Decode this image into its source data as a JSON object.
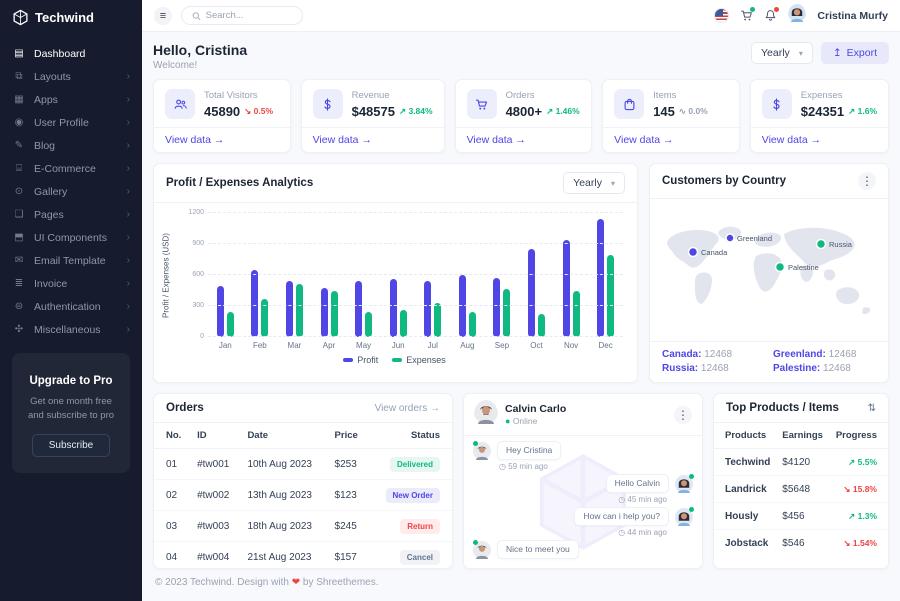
{
  "app": {
    "name": "Techwind"
  },
  "colors": {
    "accent": "#4f46e5",
    "green": "#10b981",
    "red": "#ef4444",
    "sidebar_bg": "#161c2d"
  },
  "sidebar": {
    "items": [
      {
        "label": "Dashboard",
        "icon": "▤",
        "active": true
      },
      {
        "label": "Layouts",
        "icon": "⧉"
      },
      {
        "label": "Apps",
        "icon": "▦"
      },
      {
        "label": "User Profile",
        "icon": "◉"
      },
      {
        "label": "Blog",
        "icon": "✎"
      },
      {
        "label": "E-Commerce",
        "icon": "⌸"
      },
      {
        "label": "Gallery",
        "icon": "⊙"
      },
      {
        "label": "Pages",
        "icon": "❏"
      },
      {
        "label": "UI Components",
        "icon": "⬒"
      },
      {
        "label": "Email Template",
        "icon": "✉"
      },
      {
        "label": "Invoice",
        "icon": "≣"
      },
      {
        "label": "Authentication",
        "icon": "⊜"
      },
      {
        "label": "Miscellaneous",
        "icon": "✣"
      }
    ],
    "upgrade": {
      "title": "Upgrade to Pro",
      "description": "Get one month free and subscribe to pro",
      "button_label": "Subscribe"
    }
  },
  "topbar": {
    "search_placeholder": "Search...",
    "user_name": "Cristina Murfy"
  },
  "page_header": {
    "title": "Hello, Cristina",
    "subtitle": "Welcome!",
    "period": "Yearly",
    "export_label": "Export",
    "export_icon": "↥"
  },
  "stats": {
    "view_data_label": "View data →",
    "cards": [
      {
        "label": "Total Visitors",
        "value": "45890",
        "trend": "↘ 0.5%",
        "trend_dir": "down"
      },
      {
        "label": "Revenue",
        "value": "$48575",
        "trend": "↗ 3.84%",
        "trend_dir": "up"
      },
      {
        "label": "Orders",
        "value": "4800+",
        "trend": "↗ 1.46%",
        "trend_dir": "up"
      },
      {
        "label": "Items",
        "value": "145",
        "trend": "∿ 0.0%",
        "trend_dir": "flat"
      },
      {
        "label": "Expenses",
        "value": "$24351",
        "trend": "↗ 1.6%",
        "trend_dir": "up"
      }
    ]
  },
  "chart_data": {
    "type": "bar",
    "title": "Profit / Expenses Analytics",
    "period": "Yearly",
    "ylabel": "Profit / Expenses (USD)",
    "xlabel": "",
    "categories": [
      "Jan",
      "Feb",
      "Mar",
      "Apr",
      "May",
      "Jun",
      "Jul",
      "Aug",
      "Sep",
      "Oct",
      "Nov",
      "Dec"
    ],
    "series": [
      {
        "name": "Profit",
        "color": "#4f46e5",
        "values": [
          490,
          645,
          545,
          475,
          545,
          560,
          545,
          600,
          575,
          850,
          940,
          1145
        ]
      },
      {
        "name": "Expenses",
        "color": "#10b981",
        "values": [
          240,
          370,
          515,
          445,
          240,
          260,
          330,
          245,
          465,
          220,
          450,
          790
        ]
      }
    ],
    "ylim": [
      0,
      1200
    ],
    "yticks": [
      0,
      300,
      600,
      900,
      1200
    ],
    "grid": "dashed-horizontal",
    "legend_position": "bottom"
  },
  "customers": {
    "title": "Customers by Country",
    "markers": [
      {
        "name": "Canada",
        "color": "#4f46e5"
      },
      {
        "name": "Greenland",
        "color": "#4f46e5"
      },
      {
        "name": "Russia",
        "color": "#10b981"
      },
      {
        "name": "Palestine",
        "color": "#10b981"
      }
    ],
    "stats": [
      {
        "country": "Canada:",
        "value": "12468"
      },
      {
        "country": "Greenland:",
        "value": "12468"
      },
      {
        "country": "Russia:",
        "value": "12468"
      },
      {
        "country": "Palestine:",
        "value": "12468"
      }
    ]
  },
  "orders": {
    "title": "Orders",
    "view_link": "View orders →",
    "columns": [
      "No.",
      "ID",
      "Date",
      "Price",
      "Status"
    ],
    "rows": [
      {
        "no": "01",
        "id": "#tw001",
        "date": "10th Aug 2023",
        "price": "$253",
        "status": "Delivered"
      },
      {
        "no": "02",
        "id": "#tw002",
        "date": "13th Aug 2023",
        "price": "$123",
        "status": "New Order"
      },
      {
        "no": "03",
        "id": "#tw003",
        "date": "18th Aug 2023",
        "price": "$245",
        "status": "Return"
      },
      {
        "no": "04",
        "id": "#tw004",
        "date": "21st Aug 2023",
        "price": "$157",
        "status": "Cancel"
      }
    ]
  },
  "chat": {
    "contact_name": "Calvin Carlo",
    "status": "Online",
    "messages": [
      {
        "text": "Hey Cristina",
        "time": "◷ 59 min ago",
        "side": "left"
      },
      {
        "text": "Hello Calvin",
        "time": "◷ 45 min ago",
        "side": "right"
      },
      {
        "text": "How can i help you?",
        "time": "◷ 44 min ago",
        "side": "right"
      },
      {
        "text": "Nice to meet you",
        "time": "",
        "side": "left"
      }
    ]
  },
  "products": {
    "title": "Top Products / Items",
    "sort_icon": "⇅",
    "columns": [
      "Products",
      "Earnings",
      "Progress"
    ],
    "rows": [
      {
        "name": "Techwind",
        "earnings": "$4120",
        "progress": "↗ 5.5%",
        "dir": "up"
      },
      {
        "name": "Landrick",
        "earnings": "$5648",
        "progress": "↘ 15.8%",
        "dir": "down"
      },
      {
        "name": "Hously",
        "earnings": "$456",
        "progress": "↗ 1.3%",
        "dir": "up"
      },
      {
        "name": "Jobstack",
        "earnings": "$546",
        "progress": "↘ 1.54%",
        "dir": "down"
      }
    ]
  },
  "footer": {
    "copyright": "© 2023 Techwind. Design with",
    "heart": "❤",
    "credit": "by Shreethemes."
  }
}
